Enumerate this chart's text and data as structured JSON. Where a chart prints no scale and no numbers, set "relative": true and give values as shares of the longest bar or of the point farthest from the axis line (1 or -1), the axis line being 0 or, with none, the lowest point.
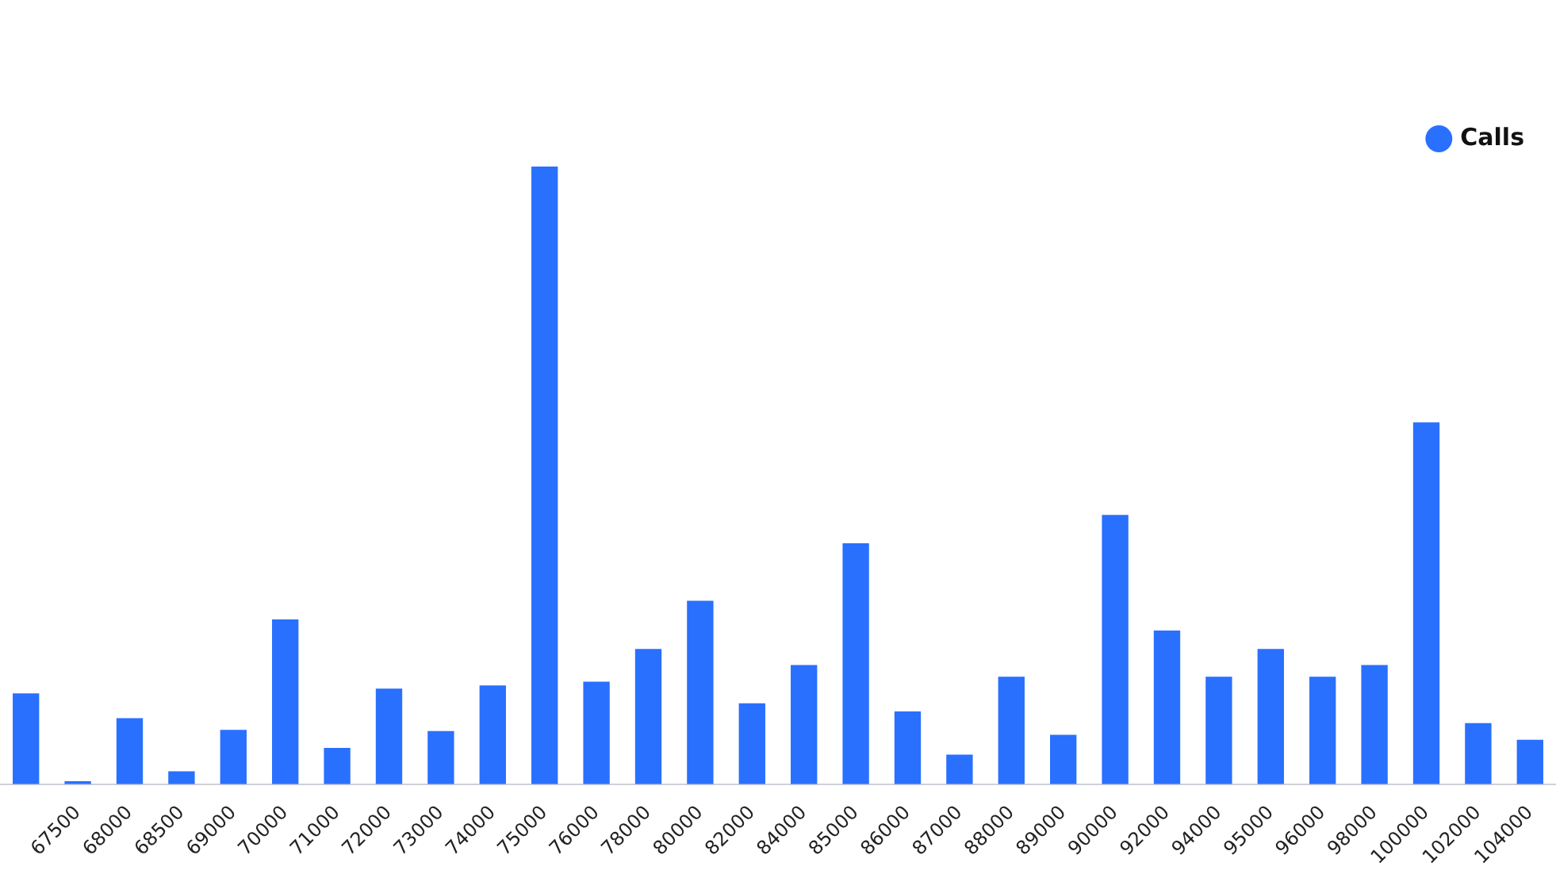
{
  "chart_data": {
    "type": "bar",
    "relative": true,
    "legend": "top right",
    "categories": [
      null,
      "67500",
      "68000",
      "68500",
      "69000",
      "70000",
      "71000",
      "72000",
      "73000",
      "74000",
      "75000",
      "76000",
      "78000",
      "80000",
      "82000",
      "84000",
      "85000",
      "86000",
      "87000",
      "88000",
      "89000",
      "90000",
      "92000",
      "94000",
      "95000",
      "96000",
      "98000",
      "100000",
      "102000",
      "104000"
    ],
    "series": [
      {
        "name": "Calls",
        "color": "#2970ff",
        "values": [
          0.147,
          0.005,
          0.107,
          0.021,
          0.088,
          0.267,
          0.059,
          0.155,
          0.086,
          0.16,
          1,
          0.166,
          0.219,
          0.297,
          0.131,
          0.193,
          0.39,
          0.118,
          0.048,
          0.174,
          0.08,
          0.436,
          0.249,
          0.174,
          0.219,
          0.174,
          0.193,
          0.586,
          0.099,
          0.072
        ]
      }
    ]
  }
}
